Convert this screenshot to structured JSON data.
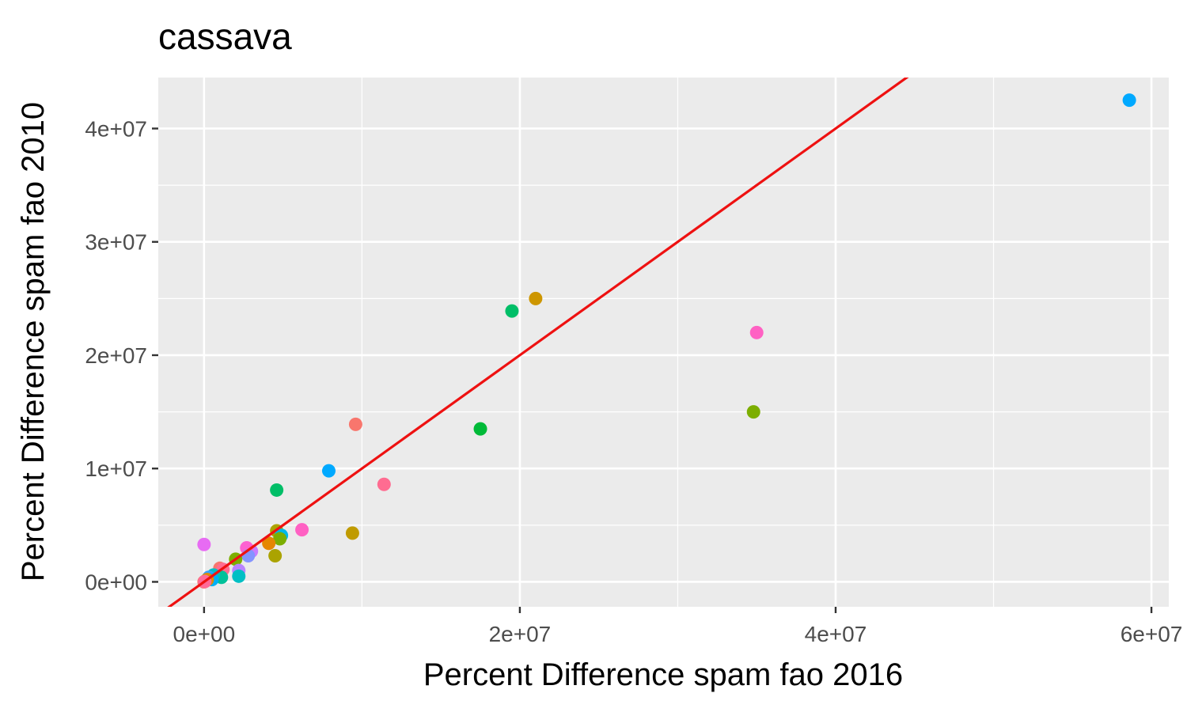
{
  "chart_data": {
    "type": "scatter",
    "title": "cassava",
    "xlabel": "Percent Difference spam fao 2016",
    "ylabel": "Percent Difference spam fao 2010",
    "xlim": [
      -2900000,
      61100000
    ],
    "ylim": [
      -2200000,
      44500000
    ],
    "x_ticks": [
      {
        "value": 0,
        "label": "0e+00"
      },
      {
        "value": 20000000,
        "label": "2e+07"
      },
      {
        "value": 40000000,
        "label": "4e+07"
      },
      {
        "value": 60000000,
        "label": "6e+07"
      }
    ],
    "y_ticks": [
      {
        "value": 0,
        "label": "0e+00"
      },
      {
        "value": 10000000,
        "label": "1e+07"
      },
      {
        "value": 20000000,
        "label": "2e+07"
      },
      {
        "value": 30000000,
        "label": "3e+07"
      },
      {
        "value": 40000000,
        "label": "4e+07"
      }
    ],
    "grid": true,
    "legend": "none",
    "colors": {
      "panel": "#ebebeb",
      "grid": "#ffffff",
      "reference_line": "#ee1111",
      "tick": "#333333"
    },
    "reference_line": {
      "slope": 1,
      "intercept": 0
    },
    "points": [
      {
        "x": 58600000,
        "y": 42500000,
        "color": "#00a9ff"
      },
      {
        "x": 21000000,
        "y": 25000000,
        "color": "#cd9600"
      },
      {
        "x": 19500000,
        "y": 23900000,
        "color": "#00be67"
      },
      {
        "x": 35000000,
        "y": 22000000,
        "color": "#ff61c3"
      },
      {
        "x": 34800000,
        "y": 15000000,
        "color": "#7cae00"
      },
      {
        "x": 17500000,
        "y": 13500000,
        "color": "#00ba38"
      },
      {
        "x": 9600000,
        "y": 13900000,
        "color": "#f8766d"
      },
      {
        "x": 11400000,
        "y": 8600000,
        "color": "#ff6c91"
      },
      {
        "x": 7900000,
        "y": 9800000,
        "color": "#00a9ff"
      },
      {
        "x": 4600000,
        "y": 8100000,
        "color": "#00be67"
      },
      {
        "x": 9400000,
        "y": 4300000,
        "color": "#c09b00"
      },
      {
        "x": 6200000,
        "y": 4600000,
        "color": "#ff61c3"
      },
      {
        "x": 4600000,
        "y": 4500000,
        "color": "#aba300"
      },
      {
        "x": 4900000,
        "y": 4100000,
        "color": "#00b8e7"
      },
      {
        "x": 4800000,
        "y": 3800000,
        "color": "#7cae00"
      },
      {
        "x": 4100000,
        "y": 3400000,
        "color": "#e58700"
      },
      {
        "x": 4500000,
        "y": 2300000,
        "color": "#aba300"
      },
      {
        "x": 3000000,
        "y": 2700000,
        "color": "#c77cff"
      },
      {
        "x": 2700000,
        "y": 3000000,
        "color": "#fd61d1"
      },
      {
        "x": 2800000,
        "y": 2300000,
        "color": "#8494ff"
      },
      {
        "x": 2000000,
        "y": 2000000,
        "color": "#7cae00"
      },
      {
        "x": 2200000,
        "y": 1000000,
        "color": "#b983ff"
      },
      {
        "x": 2200000,
        "y": 500000,
        "color": "#00bfc4"
      },
      {
        "x": 0,
        "y": 3300000,
        "color": "#e76bf3"
      },
      {
        "x": 1000000,
        "y": 1200000,
        "color": "#f8766d"
      },
      {
        "x": 1200000,
        "y": 1100000,
        "color": "#ff6c91"
      },
      {
        "x": 1100000,
        "y": 400000,
        "color": "#00c19a"
      },
      {
        "x": 600000,
        "y": 600000,
        "color": "#00bfc4"
      },
      {
        "x": 300000,
        "y": 400000,
        "color": "#35a2ff"
      },
      {
        "x": 500000,
        "y": 200000,
        "color": "#00b0f6"
      },
      {
        "x": 200000,
        "y": 200000,
        "color": "#e58700"
      },
      {
        "x": 100000,
        "y": 100000,
        "color": "#d39200"
      },
      {
        "x": 0,
        "y": 0,
        "color": "#f8766d"
      },
      {
        "x": 50000,
        "y": 30000,
        "color": "#ff6a98"
      }
    ]
  }
}
